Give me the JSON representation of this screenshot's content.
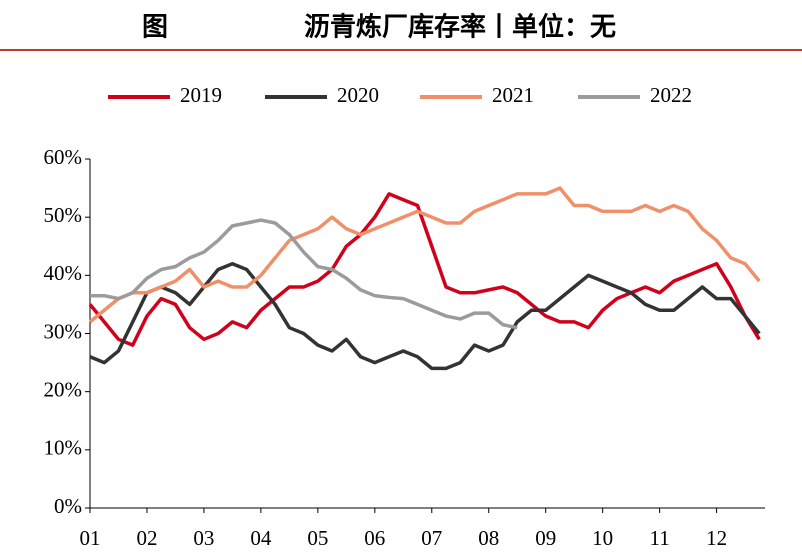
{
  "chart_data": {
    "type": "line",
    "label": "图",
    "title": "沥青炼厂库存率丨单位：无",
    "x": [
      1,
      1.25,
      1.5,
      1.75,
      2,
      2.25,
      2.5,
      2.75,
      3,
      3.25,
      3.5,
      3.75,
      4,
      4.25,
      4.5,
      4.75,
      5,
      5.25,
      5.5,
      5.75,
      6,
      6.25,
      6.5,
      6.75,
      7,
      7.25,
      7.5,
      7.75,
      8,
      8.25,
      8.5,
      8.75,
      9,
      9.25,
      9.5,
      9.75,
      10,
      10.25,
      10.5,
      10.75,
      11,
      11.25,
      11.5,
      11.75,
      12,
      12.25,
      12.5,
      12.75
    ],
    "series": [
      {
        "name": "2019",
        "color": "#d0021b",
        "values": [
          35,
          32,
          29,
          28,
          33,
          36,
          35,
          31,
          29,
          30,
          32,
          31,
          34,
          36,
          38,
          38,
          39,
          41,
          45,
          47,
          50,
          54,
          53,
          52,
          45,
          38,
          37,
          37,
          37.5,
          38,
          37,
          35,
          33,
          32,
          32,
          31,
          34,
          36,
          37,
          38,
          37,
          39,
          40,
          41,
          42,
          38,
          33,
          29
        ]
      },
      {
        "name": "2020",
        "color": "#333333",
        "values": [
          26,
          25,
          27,
          32,
          37,
          38,
          37,
          35,
          38,
          41,
          42,
          41,
          38,
          35,
          31,
          30,
          28,
          27,
          29,
          26,
          25,
          26,
          27,
          26,
          24,
          24,
          25,
          28,
          27,
          28,
          32,
          34,
          34,
          36,
          38,
          40,
          39,
          38,
          37,
          35,
          34,
          34,
          36,
          38,
          36,
          36,
          33,
          30
        ]
      },
      {
        "name": "2021",
        "color": "#f0906a",
        "values": [
          32,
          34,
          36,
          37,
          37,
          38,
          39,
          41,
          38,
          39,
          38,
          38,
          40,
          43,
          46,
          47,
          48,
          50,
          48,
          47,
          48,
          49,
          50,
          51,
          50,
          49,
          49,
          51,
          52,
          53,
          54,
          54,
          54,
          55,
          52,
          52,
          51,
          51,
          51,
          52,
          51,
          52,
          51,
          48,
          46,
          43,
          42,
          39
        ]
      },
      {
        "name": "2022",
        "color": "#9b9b9b",
        "values": [
          36.5,
          36.5,
          36,
          37,
          39.5,
          41,
          41.5,
          43,
          44,
          46,
          48.5,
          49,
          49.5,
          49,
          47,
          44,
          41.5,
          41,
          39.5,
          37.5,
          36.5,
          36.2,
          36,
          35,
          34,
          33,
          32.5,
          33.5,
          33.5,
          31.5,
          31,
          null,
          null,
          null,
          null,
          null,
          null,
          null,
          null,
          null,
          null,
          null,
          null,
          null,
          null,
          null,
          null,
          null
        ]
      }
    ],
    "xlim": [
      1,
      12.85
    ],
    "xticks": [
      {
        "value": 1,
        "label": "01"
      },
      {
        "value": 2,
        "label": "02"
      },
      {
        "value": 3,
        "label": "03"
      },
      {
        "value": 4,
        "label": "04"
      },
      {
        "value": 5,
        "label": "05"
      },
      {
        "value": 6,
        "label": "06"
      },
      {
        "value": 7,
        "label": "07"
      },
      {
        "value": 8,
        "label": "08"
      },
      {
        "value": 9,
        "label": "09"
      },
      {
        "value": 10,
        "label": "10"
      },
      {
        "value": 11,
        "label": "11"
      },
      {
        "value": 12,
        "label": "12"
      }
    ],
    "ylim": [
      0,
      60
    ],
    "yticks": [
      {
        "value": 0,
        "label": "0%"
      },
      {
        "value": 10,
        "label": "10%"
      },
      {
        "value": 20,
        "label": "20%"
      },
      {
        "value": 30,
        "label": "30%"
      },
      {
        "value": 40,
        "label": "40%"
      },
      {
        "value": 50,
        "label": "50%"
      },
      {
        "value": 60,
        "label": "60%"
      }
    ],
    "legend": "top"
  }
}
